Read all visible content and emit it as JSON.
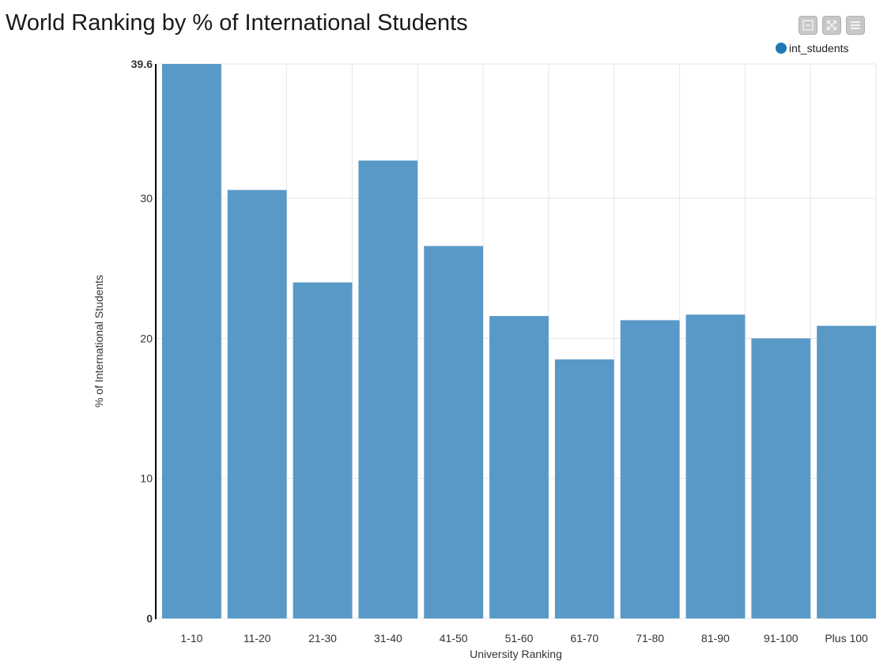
{
  "header": {
    "title": "World Ranking by % of International Students"
  },
  "toolbar": {
    "buttons": [
      {
        "icon": "minimize-icon"
      },
      {
        "icon": "expand-icon"
      },
      {
        "icon": "menu-icon"
      }
    ]
  },
  "colors": {
    "bar": "#5899c7",
    "series": "#1f77b4",
    "grid": "#e6e6e6",
    "axis": "#000000"
  },
  "chart_data": {
    "type": "bar",
    "title": "World Ranking by % of International Students",
    "xlabel": "University Ranking",
    "ylabel": "% of International Students",
    "categories": [
      "1-10",
      "11-20",
      "21-30",
      "31-40",
      "41-50",
      "51-60",
      "61-70",
      "71-80",
      "81-90",
      "91-100",
      "Plus 100"
    ],
    "series": [
      {
        "name": "int_students",
        "values": [
          39.6,
          30.6,
          24.0,
          32.7,
          26.6,
          21.6,
          18.5,
          21.3,
          21.7,
          20.0,
          20.9
        ]
      }
    ],
    "ylim": [
      0,
      39.6
    ],
    "yticks": [
      "0",
      "10",
      "20",
      "30",
      "39.6"
    ],
    "grid": true,
    "legend": "top-right"
  }
}
